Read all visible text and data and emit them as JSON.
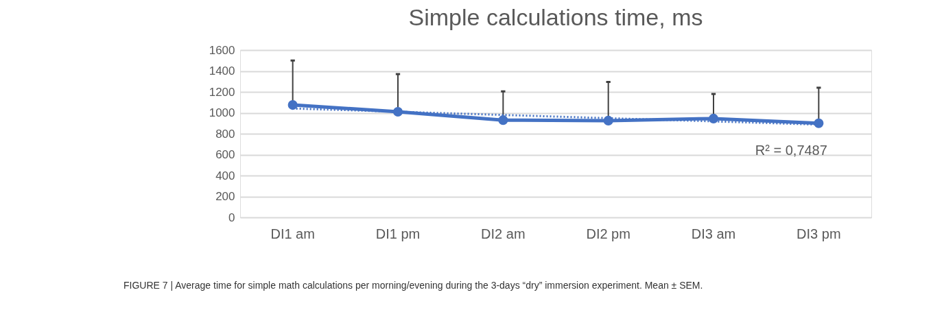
{
  "chart_data": {
    "type": "line",
    "title": "Simple calculations time, ms",
    "categories": [
      "DI1 am",
      "DI1 pm",
      "DI2 am",
      "DI2 pm",
      "DI3 am",
      "DI3 pm"
    ],
    "series": [
      {
        "color": "#4472c4",
        "values": [
          1075,
          1010,
          930,
          925,
          945,
          900
        ],
        "errors": [
          [
            1075,
            1500
          ],
          [
            1010,
            1370
          ],
          [
            930,
            1205
          ],
          [
            925,
            1295
          ],
          [
            945,
            1180
          ],
          [
            900,
            1240
          ]
        ],
        "marker": "circle",
        "line_style": "solid"
      },
      {
        "type": "line",
        "color": "#4472c4",
        "x": [
          "DI1 am",
          "DI3 pm"
        ],
        "values": [
          1041,
          887
        ],
        "marker": "none",
        "line_style": "dotted"
      }
    ],
    "ylim": [
      0,
      1600
    ],
    "yticks": [
      0,
      200,
      400,
      600,
      800,
      1000,
      1200,
      1400,
      1600
    ],
    "grid": "y",
    "annotations": [
      "R² = 0,7487",
      "FIGURE 7 | Average time for simple math calculations per morning/evening during the 3-days “dry” immersion experiment. Mean ± SEM."
    ]
  }
}
